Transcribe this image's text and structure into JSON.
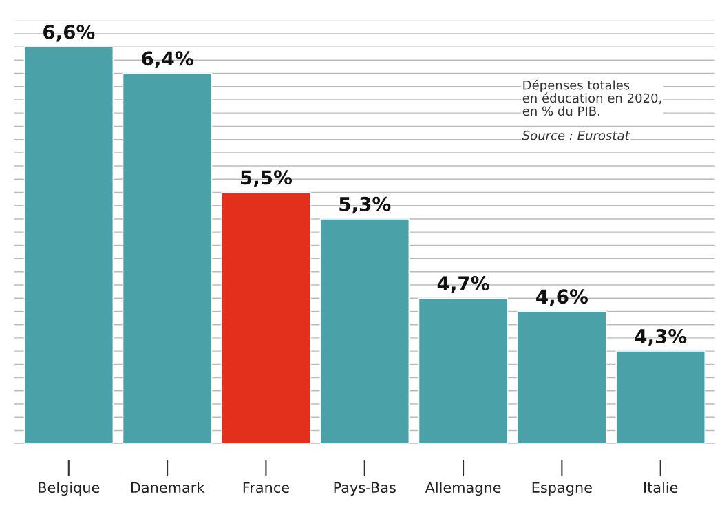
{
  "chart_data": {
    "type": "bar",
    "categories": [
      "Belgique",
      "Danemark",
      "France",
      "Pays-Bas",
      "Allemagne",
      "Espagne",
      "Italie"
    ],
    "values": [
      6.6,
      6.4,
      5.5,
      5.3,
      4.7,
      4.6,
      4.3
    ],
    "colors": [
      "#4aa1a8",
      "#4aa1a8",
      "#e3301d",
      "#4aa1a8",
      "#4aa1a8",
      "#4aa1a8",
      "#4aa1a8"
    ],
    "value_labels": [
      "6,6%",
      "6,4%",
      "5,5%",
      "5,3%",
      "4,7%",
      "4,6%",
      "4,3%"
    ],
    "ylim": [
      3.6,
      6.8
    ],
    "yticks": [
      {
        "value": 3.6,
        "label": null
      },
      {
        "value": 3.7,
        "label": null
      },
      {
        "value": 3.8,
        "label": null
      },
      {
        "value": 3.9,
        "label": null
      },
      {
        "value": 4.0,
        "label": null
      },
      {
        "value": 4.1,
        "label": null
      },
      {
        "value": 4.2,
        "label": null
      },
      {
        "value": 4.3,
        "label": null
      },
      {
        "value": 4.4,
        "label": null
      },
      {
        "value": 4.5,
        "label": null
      },
      {
        "value": 4.6,
        "label": null
      },
      {
        "value": 4.7,
        "label": null
      },
      {
        "value": 4.8,
        "label": null
      },
      {
        "value": 4.9,
        "label": null
      },
      {
        "value": 5.0,
        "label": null
      },
      {
        "value": 5.1,
        "label": null
      },
      {
        "value": 5.2,
        "label": null
      },
      {
        "value": 5.3,
        "label": null
      },
      {
        "value": 5.4,
        "label": null
      },
      {
        "value": 5.5,
        "label": null
      },
      {
        "value": 5.6,
        "label": null
      },
      {
        "value": 5.7,
        "label": null
      },
      {
        "value": 5.8,
        "label": null
      },
      {
        "value": 5.9,
        "label": null
      },
      {
        "value": 6.0,
        "label": null
      },
      {
        "value": 6.1,
        "label": null
      },
      {
        "value": 6.2,
        "label": null
      },
      {
        "value": 6.3,
        "label": null
      },
      {
        "value": 6.4,
        "label": null
      },
      {
        "value": 6.5,
        "label": null
      },
      {
        "value": 6.6,
        "label": null
      },
      {
        "value": 6.7,
        "label": null
      },
      {
        "value": 6.8,
        "label": null
      }
    ],
    "grid": "y",
    "tick_labels": "x",
    "annotations": [
      "Dépenses totales\nen éducation en 2020,\nen % du PIB.",
      "Source : Eurostat"
    ]
  }
}
